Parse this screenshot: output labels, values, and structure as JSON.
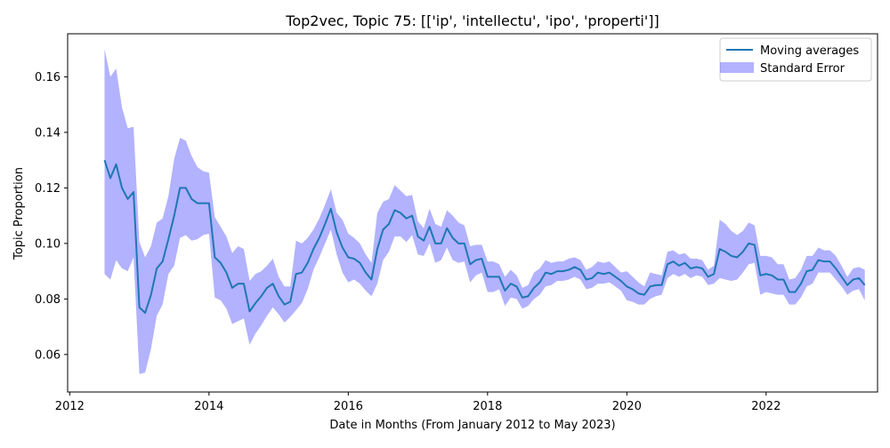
{
  "chart_data": {
    "type": "line",
    "title": "Top2vec, Topic 75: [['ip', 'intellectu', 'ipo', 'properti']]",
    "xlabel": "Date in Months (From January 2012 to May 2023)",
    "ylabel": "Topic Proportion",
    "xlim": [
      2011.97,
      2023.6
    ],
    "ylim": [
      0.0465,
      0.1755
    ],
    "x_ticks": [
      2012,
      2014,
      2016,
      2018,
      2020,
      2022
    ],
    "y_ticks": [
      0.06,
      0.08,
      0.1,
      0.12,
      0.14,
      0.16
    ],
    "y_tick_labels": [
      "0.06",
      "0.08",
      "0.10",
      "0.12",
      "0.14",
      "0.16"
    ],
    "legend": {
      "position": "upper-right",
      "entries": [
        "Moving averages",
        "Standard Error"
      ]
    },
    "colors": {
      "line": "#1f77b4",
      "band": "#0000ff",
      "band_opacity": 0.3
    },
    "x_start": 2012.5,
    "x_step_months": 1,
    "series": [
      {
        "name": "Moving averages",
        "values": [
          0.13,
          0.1235,
          0.1285,
          0.12,
          0.116,
          0.1185,
          0.077,
          0.075,
          0.0815,
          0.091,
          0.0935,
          0.1015,
          0.11,
          0.12,
          0.12,
          0.116,
          0.1145,
          0.1145,
          0.1145,
          0.095,
          0.093,
          0.0895,
          0.084,
          0.0855,
          0.0855,
          0.0755,
          0.0785,
          0.081,
          0.084,
          0.0855,
          0.081,
          0.078,
          0.079,
          0.089,
          0.0895,
          0.093,
          0.098,
          0.102,
          0.107,
          0.1125,
          0.104,
          0.0985,
          0.095,
          0.0945,
          0.093,
          0.0895,
          0.087,
          0.098,
          0.105,
          0.107,
          0.112,
          0.111,
          0.109,
          0.11,
          0.1025,
          0.101,
          0.106,
          0.1,
          0.1,
          0.1055,
          0.102,
          0.1,
          0.1,
          0.0925,
          0.094,
          0.0945,
          0.088,
          0.088,
          0.088,
          0.083,
          0.0855,
          0.0845,
          0.0805,
          0.081,
          0.084,
          0.086,
          0.0895,
          0.089,
          0.09,
          0.09,
          0.0905,
          0.0915,
          0.0905,
          0.087,
          0.0875,
          0.0895,
          0.089,
          0.0895,
          0.088,
          0.0865,
          0.0845,
          0.0835,
          0.082,
          0.0815,
          0.0845,
          0.085,
          0.085,
          0.0925,
          0.0935,
          0.092,
          0.093,
          0.091,
          0.0915,
          0.091,
          0.088,
          0.089,
          0.098,
          0.097,
          0.0955,
          0.095,
          0.097,
          0.1,
          0.0995,
          0.0885,
          0.089,
          0.0885,
          0.087,
          0.087,
          0.0825,
          0.0825,
          0.0855,
          0.09,
          0.0905,
          0.094,
          0.0935,
          0.0935,
          0.091,
          0.088,
          0.085,
          0.087,
          0.0875,
          0.085
        ]
      },
      {
        "name": "Standard Error",
        "kind": "band",
        "upper": [
          0.17,
          0.16,
          0.163,
          0.149,
          0.1415,
          0.142,
          0.1005,
          0.095,
          0.099,
          0.1075,
          0.109,
          0.117,
          0.1305,
          0.138,
          0.137,
          0.1315,
          0.1275,
          0.126,
          0.1255,
          0.1095,
          0.106,
          0.1025,
          0.0965,
          0.099,
          0.098,
          0.0865,
          0.089,
          0.09,
          0.092,
          0.0945,
          0.088,
          0.0845,
          0.0845,
          0.101,
          0.1,
          0.102,
          0.105,
          0.109,
          0.114,
          0.1195,
          0.111,
          0.1085,
          0.1035,
          0.102,
          0.1,
          0.096,
          0.093,
          0.111,
          0.115,
          0.116,
          0.121,
          0.119,
          0.117,
          0.1175,
          0.108,
          0.1055,
          0.1125,
          0.107,
          0.106,
          0.112,
          0.11,
          0.1075,
          0.1065,
          0.099,
          0.0995,
          0.0995,
          0.0935,
          0.0935,
          0.0925,
          0.088,
          0.0905,
          0.0885,
          0.084,
          0.085,
          0.0895,
          0.091,
          0.094,
          0.093,
          0.0935,
          0.0935,
          0.0945,
          0.095,
          0.094,
          0.0905,
          0.0915,
          0.0935,
          0.093,
          0.0935,
          0.0915,
          0.0895,
          0.09,
          0.088,
          0.086,
          0.0845,
          0.0895,
          0.089,
          0.0885,
          0.097,
          0.0975,
          0.096,
          0.0965,
          0.0945,
          0.0945,
          0.094,
          0.0905,
          0.092,
          0.1085,
          0.107,
          0.1045,
          0.103,
          0.1045,
          0.1075,
          0.1065,
          0.0955,
          0.0955,
          0.095,
          0.0925,
          0.0925,
          0.087,
          0.0875,
          0.0905,
          0.0955,
          0.0955,
          0.0985,
          0.0975,
          0.0975,
          0.0955,
          0.092,
          0.088,
          0.091,
          0.0915,
          0.0905
        ],
        "lower": [
          0.089,
          0.087,
          0.094,
          0.091,
          0.09,
          0.095,
          0.053,
          0.0535,
          0.062,
          0.074,
          0.078,
          0.089,
          0.092,
          0.102,
          0.103,
          0.101,
          0.1015,
          0.103,
          0.1035,
          0.0805,
          0.0795,
          0.0765,
          0.071,
          0.072,
          0.073,
          0.0635,
          0.0675,
          0.0705,
          0.074,
          0.077,
          0.0745,
          0.0715,
          0.0735,
          0.076,
          0.0785,
          0.0835,
          0.0905,
          0.095,
          0.1,
          0.105,
          0.096,
          0.0895,
          0.086,
          0.087,
          0.0855,
          0.083,
          0.081,
          0.0855,
          0.094,
          0.097,
          0.1025,
          0.1025,
          0.1005,
          0.103,
          0.096,
          0.0955,
          0.1,
          0.093,
          0.094,
          0.0985,
          0.094,
          0.093,
          0.0935,
          0.086,
          0.0885,
          0.0895,
          0.0825,
          0.0825,
          0.0835,
          0.0775,
          0.0805,
          0.08,
          0.0765,
          0.0775,
          0.08,
          0.0815,
          0.0845,
          0.085,
          0.0865,
          0.0865,
          0.087,
          0.088,
          0.087,
          0.0835,
          0.084,
          0.0855,
          0.0855,
          0.086,
          0.0845,
          0.083,
          0.0795,
          0.079,
          0.078,
          0.078,
          0.08,
          0.081,
          0.0815,
          0.0875,
          0.089,
          0.088,
          0.089,
          0.0875,
          0.0885,
          0.088,
          0.085,
          0.0855,
          0.0875,
          0.087,
          0.0865,
          0.087,
          0.0895,
          0.0925,
          0.093,
          0.0815,
          0.0825,
          0.082,
          0.0815,
          0.0815,
          0.078,
          0.078,
          0.0805,
          0.0845,
          0.0855,
          0.0895,
          0.0895,
          0.0895,
          0.087,
          0.0845,
          0.0815,
          0.083,
          0.0835,
          0.0795
        ]
      }
    ]
  }
}
